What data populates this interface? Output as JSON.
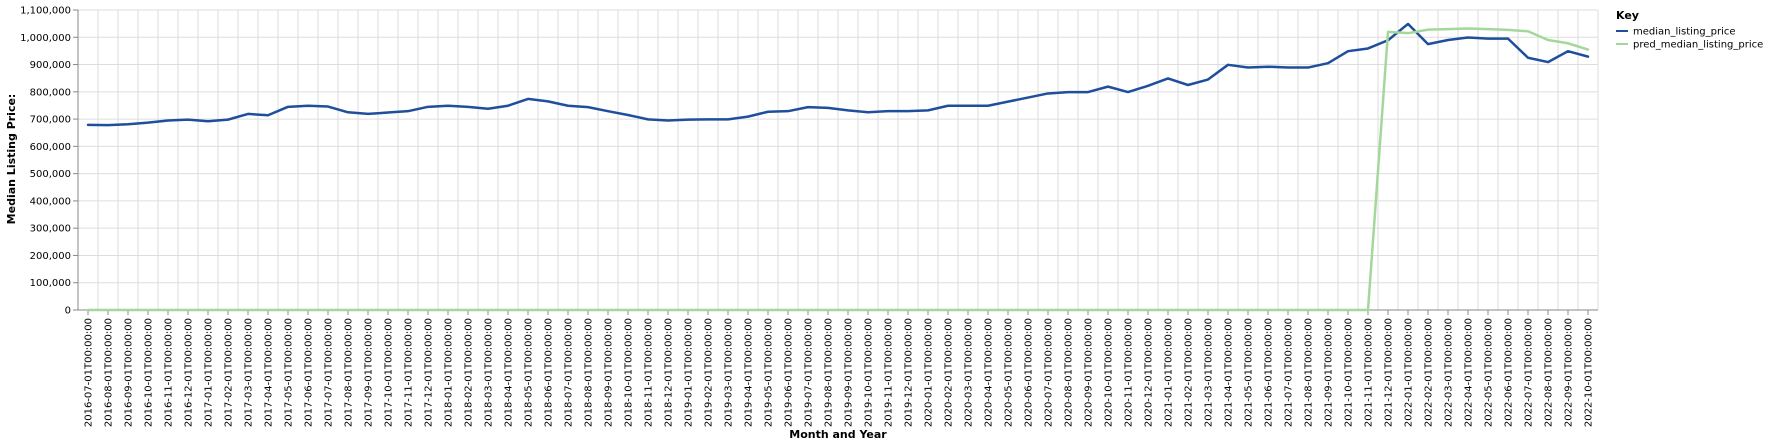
{
  "chart_data": {
    "type": "line",
    "xlabel": "Month and Year",
    "ylabel": "Median Listing Price:",
    "ylim": [
      0,
      1100000
    ],
    "y_ticks": [
      "0",
      "100,000",
      "200,000",
      "300,000",
      "400,000",
      "500,000",
      "600,000",
      "700,000",
      "800,000",
      "900,000",
      "1,000,000",
      "1,100,000"
    ],
    "y_tick_values": [
      0,
      100000,
      200000,
      300000,
      400000,
      500000,
      600000,
      700000,
      800000,
      900000,
      1000000,
      1100000
    ],
    "grid": true,
    "legend": {
      "title": "Key",
      "position": "top-right"
    },
    "categories": [
      "2016-07-01T00:00:00",
      "2016-08-01T00:00:00",
      "2016-09-01T00:00:00",
      "2016-10-01T00:00:00",
      "2016-11-01T00:00:00",
      "2016-12-01T00:00:00",
      "2017-01-01T00:00:00",
      "2017-02-01T00:00:00",
      "2017-03-01T00:00:00",
      "2017-04-01T00:00:00",
      "2017-05-01T00:00:00",
      "2017-06-01T00:00:00",
      "2017-07-01T00:00:00",
      "2017-08-01T00:00:00",
      "2017-09-01T00:00:00",
      "2017-10-01T00:00:00",
      "2017-11-01T00:00:00",
      "2017-12-01T00:00:00",
      "2018-01-01T00:00:00",
      "2018-02-01T00:00:00",
      "2018-03-01T00:00:00",
      "2018-04-01T00:00:00",
      "2018-05-01T00:00:00",
      "2018-06-01T00:00:00",
      "2018-07-01T00:00:00",
      "2018-08-01T00:00:00",
      "2018-09-01T00:00:00",
      "2018-10-01T00:00:00",
      "2018-11-01T00:00:00",
      "2018-12-01T00:00:00",
      "2019-01-01T00:00:00",
      "2019-02-01T00:00:00",
      "2019-03-01T00:00:00",
      "2019-04-01T00:00:00",
      "2019-05-01T00:00:00",
      "2019-06-01T00:00:00",
      "2019-07-01T00:00:00",
      "2019-08-01T00:00:00",
      "2019-09-01T00:00:00",
      "2019-10-01T00:00:00",
      "2019-11-01T00:00:00",
      "2019-12-01T00:00:00",
      "2020-01-01T00:00:00",
      "2020-02-01T00:00:00",
      "2020-03-01T00:00:00",
      "2020-04-01T00:00:00",
      "2020-05-01T00:00:00",
      "2020-06-01T00:00:00",
      "2020-07-01T00:00:00",
      "2020-08-01T00:00:00",
      "2020-09-01T00:00:00",
      "2020-10-01T00:00:00",
      "2020-11-01T00:00:00",
      "2020-12-01T00:00:00",
      "2021-01-01T00:00:00",
      "2021-02-01T00:00:00",
      "2021-03-01T00:00:00",
      "2021-04-01T00:00:00",
      "2021-05-01T00:00:00",
      "2021-06-01T00:00:00",
      "2021-07-01T00:00:00",
      "2021-08-01T00:00:00",
      "2021-09-01T00:00:00",
      "2021-10-01T00:00:00",
      "2021-11-01T00:00:00",
      "2021-12-01T00:00:00",
      "2022-01-01T00:00:00",
      "2022-02-01T00:00:00",
      "2022-03-01T00:00:00",
      "2022-04-01T00:00:00",
      "2022-05-01T00:00:00",
      "2022-06-01T00:00:00",
      "2022-07-01T00:00:00",
      "2022-08-01T00:00:00",
      "2022-09-01T00:00:00",
      "2022-10-01T00:00:00"
    ],
    "series": [
      {
        "name": "median_listing_price",
        "color": "#1f4e9c",
        "values": [
          679000,
          678000,
          681000,
          687000,
          695000,
          698000,
          692000,
          698000,
          719000,
          714000,
          745000,
          749000,
          746000,
          725000,
          719000,
          724000,
          729000,
          745000,
          749000,
          745000,
          738000,
          749000,
          774000,
          765000,
          749000,
          744000,
          729000,
          715000,
          699000,
          695000,
          698000,
          699000,
          699000,
          709000,
          727000,
          729000,
          744000,
          741000,
          732000,
          725000,
          729000,
          729000,
          732000,
          749000,
          749000,
          749000,
          764000,
          779000,
          794000,
          799000,
          799000,
          819000,
          799000,
          822000,
          849000,
          825000,
          845000,
          899000,
          889000,
          892000,
          889000,
          889000,
          905000,
          949000,
          959000,
          989000,
          1049000,
          975000,
          990000,
          999000,
          995000,
          995000,
          925000,
          909000,
          949000,
          929000
        ]
      },
      {
        "name": "pred_median_listing_price",
        "color": "#a3d89a",
        "values": [
          0,
          0,
          0,
          0,
          0,
          0,
          0,
          0,
          0,
          0,
          0,
          0,
          0,
          0,
          0,
          0,
          0,
          0,
          0,
          0,
          0,
          0,
          0,
          0,
          0,
          0,
          0,
          0,
          0,
          0,
          0,
          0,
          0,
          0,
          0,
          0,
          0,
          0,
          0,
          0,
          0,
          0,
          0,
          0,
          0,
          0,
          0,
          0,
          0,
          0,
          0,
          0,
          0,
          0,
          0,
          0,
          0,
          0,
          0,
          0,
          0,
          0,
          0,
          0,
          0,
          1020000,
          1015000,
          1028000,
          1030000,
          1032000,
          1030000,
          1027000,
          1022000,
          990000,
          978000,
          955000
        ]
      }
    ]
  }
}
